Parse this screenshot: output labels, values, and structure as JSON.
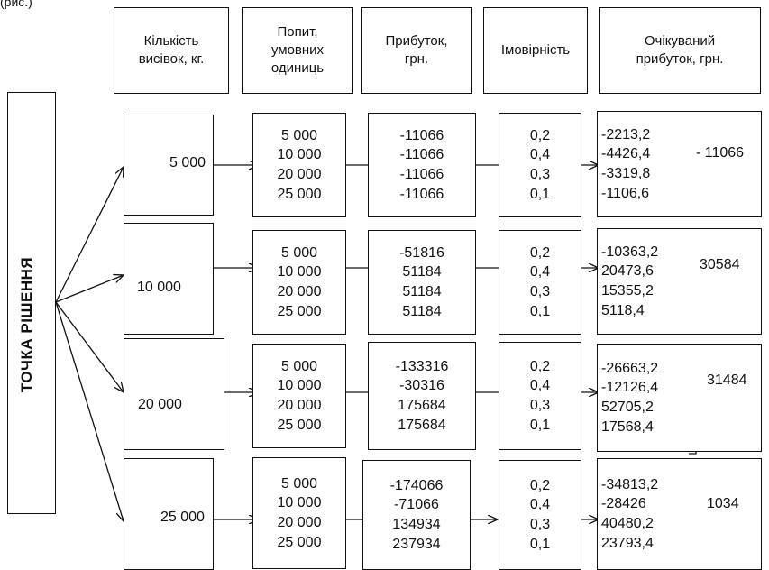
{
  "corner_text": "(рис.)",
  "headers": {
    "quantity": "Кількість\nвисівок, кг.",
    "demand": "Попит,\nумовних\nодиниць",
    "profit": "Прибуток,\nгрн.",
    "probability": "Імовірність",
    "expected": "Очікуваний\nприбуток, грн."
  },
  "decision_point": "ТОЧКА  РІШЕННЯ",
  "rows": [
    {
      "quantity": "5 000",
      "demand": [
        "5 000",
        "10 000",
        "20 000",
        "25 000"
      ],
      "profit": [
        "-11066",
        "-11066",
        "-11066",
        "-11066"
      ],
      "probability": [
        "0,2",
        "0,4",
        "0,3",
        "0,1"
      ],
      "expected": [
        "-2213,2",
        "-4426,4",
        "-3319,8",
        "-1106,6"
      ],
      "total": "- 11066"
    },
    {
      "quantity": "10 000",
      "demand": [
        "5 000",
        "10 000",
        "20 000",
        "25 000"
      ],
      "profit": [
        "-51816",
        "51184",
        "51184",
        "51184"
      ],
      "probability": [
        "0,2",
        "0,4",
        "0,3",
        "0,1"
      ],
      "expected": [
        "-10363,2",
        "20473,6",
        "15355,2",
        "5118,4"
      ],
      "total": "30584"
    },
    {
      "quantity": "20 000",
      "demand": [
        "5 000",
        "10 000",
        "20 000",
        "25 000"
      ],
      "profit": [
        "-133316",
        "-30316",
        "175684",
        "175684"
      ],
      "probability": [
        "0,2",
        "0,4",
        "0,3",
        "0,1"
      ],
      "expected": [
        "-26663,2",
        "-12126,4",
        "52705,2",
        "17568,4"
      ],
      "total": "31484"
    },
    {
      "quantity": "25 000",
      "demand": [
        "5 000",
        "10 000",
        "20 000",
        "25 000"
      ],
      "profit": [
        "-174066",
        "-71066",
        "134934",
        "237934"
      ],
      "probability": [
        "0,2",
        "0,4",
        "0,3",
        "0,1"
      ],
      "expected": [
        "-34813,2",
        "-28426",
        "40480,2",
        "23793,4"
      ],
      "total": "1034"
    }
  ]
}
